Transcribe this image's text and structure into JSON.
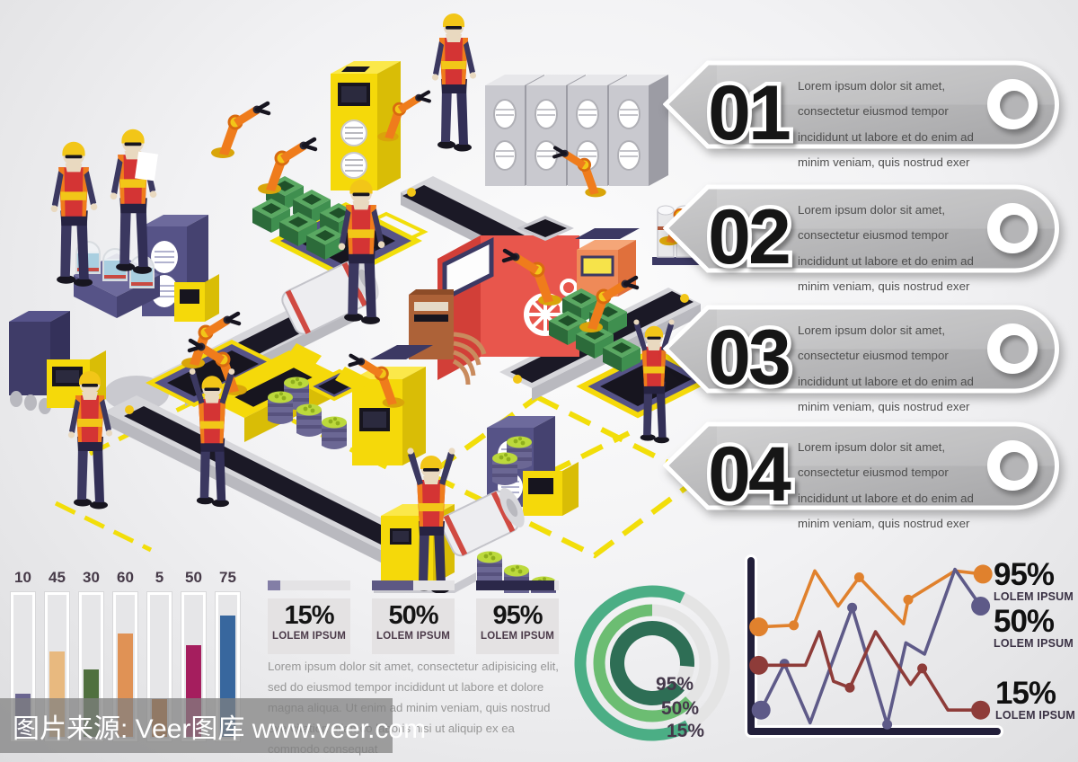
{
  "steps": [
    {
      "number": "01",
      "text": "Lorem ipsum dolor sit amet, consectetur eiusmod tempor incididunt ut labore et do enim ad minim veniam, quis nostrud exer"
    },
    {
      "number": "02",
      "text": "Lorem ipsum dolor sit amet, consectetur eiusmod tempor incididunt ut labore et do enim ad minim veniam, quis nostrud exer"
    },
    {
      "number": "03",
      "text": "Lorem ipsum dolor sit amet, consectetur eiusmod tempor incididunt ut labore et do enim ad minim veniam, quis nostrud exer"
    },
    {
      "number": "04",
      "text": "Lorem ipsum dolor sit amet, consectetur eiusmod tempor incididunt ut labore et do enim ad minim veniam, quis nostrud exer"
    }
  ],
  "stats": {
    "cards": [
      {
        "value": "15%",
        "label": "LOLEM IPSUM",
        "progress": 15,
        "bar_color": "#837ea6"
      },
      {
        "value": "50%",
        "label": "LOLEM IPSUM",
        "progress": 50,
        "bar_color": "#5d5884"
      },
      {
        "value": "95%",
        "label": "LOLEM IPSUM",
        "progress": 95,
        "bar_color": "#2b2849"
      }
    ],
    "paragraph": "Lorem ipsum dolor sit amet, consectetur adipisicing elit, sed do eiusmod tempor incididunt ut labore et dolore magna aliqua. Ut enim ad minim veniam, quis nostrud exercitation ullamco laboris nisi ut aliquip ex ea commodo consequat"
  },
  "chart_data": [
    {
      "type": "bar",
      "title": "",
      "categories": [
        "10",
        "45",
        "30",
        "60",
        "5",
        "50",
        "75"
      ],
      "values": [
        10,
        45,
        30,
        60,
        5,
        50,
        75
      ],
      "colors": [
        "#6a6590",
        "#e8b97f",
        "#50703f",
        "#e09255",
        "#bf6a1f",
        "#a51e5e",
        "#38679e"
      ],
      "track_color": "#e6e6e8",
      "ylim": [
        0,
        100
      ],
      "labels_position": "top"
    },
    {
      "type": "donut",
      "track_color": "#e4e4e4",
      "rings": [
        {
          "label": "95%",
          "value": 95,
          "color": "#2e6e55",
          "r": 39,
          "width": 16,
          "start_deg": 130,
          "sweep_deg": 325
        },
        {
          "label": "50%",
          "value": 50,
          "color": "#6cbd72",
          "r": 59,
          "width": 13,
          "start_deg": 135,
          "sweep_deg": 225
        },
        {
          "label": "15%",
          "value": 15,
          "color": "#4bae85",
          "r": 80,
          "width": 13,
          "start_deg": 150,
          "sweep_deg": 235
        }
      ]
    },
    {
      "type": "line",
      "axis_color": "#221f3a",
      "xlim": [
        0,
        100
      ],
      "ylim": [
        0,
        100
      ],
      "legend_position": "right",
      "series": [
        {
          "value_label": "95%",
          "caption": "LOLEM IPSUM",
          "color": "#e0812d",
          "points": [
            [
              1,
              62
            ],
            [
              16,
              63
            ],
            [
              25,
              97
            ],
            [
              35,
              75
            ],
            [
              44,
              93
            ],
            [
              63,
              64
            ],
            [
              65,
              79
            ],
            [
              85,
              97
            ],
            [
              97,
              95
            ]
          ],
          "big_dots": [
            0,
            8
          ],
          "small_dots": [
            1,
            4,
            6
          ]
        },
        {
          "value_label": "50%",
          "caption": "LOLEM IPSUM",
          "color": "#5e5a88",
          "points": [
            [
              2,
              10
            ],
            [
              12,
              39
            ],
            [
              23,
              2
            ],
            [
              41,
              74
            ],
            [
              56,
              1
            ],
            [
              64,
              52
            ],
            [
              72,
              45
            ],
            [
              85,
              98
            ],
            [
              96,
              75
            ]
          ],
          "big_dots": [
            0,
            8
          ],
          "small_dots": [
            1,
            3,
            4
          ]
        },
        {
          "value_label": "15%",
          "caption": "LOLEM IPSUM",
          "color": "#8e3c39",
          "points": [
            [
              1,
              38
            ],
            [
              21,
              38
            ],
            [
              27,
              59
            ],
            [
              33,
              28
            ],
            [
              40,
              24
            ],
            [
              51,
              59
            ],
            [
              66,
              26
            ],
            [
              71,
              36
            ],
            [
              82,
              10
            ],
            [
              96,
              10
            ]
          ],
          "big_dots": [
            0,
            9
          ],
          "small_dots": [
            4,
            7
          ]
        }
      ]
    }
  ],
  "watermark": {
    "text": "图片来源: Veer图库 www.veer.com"
  },
  "illustration": {
    "subject": "isometric factory floor with workers, conveyor belts, robot arms, machines, crates, barrels and tanks",
    "palette": {
      "yellow": "#f5d90a",
      "orange": "#ef7c1c",
      "red": "#e8564c",
      "navy": "#565387",
      "belt": "#1b1926",
      "gray": "#c9c9cf",
      "green": "#3f8f4f",
      "lime": "#bcd93c",
      "vest": "#d43434"
    }
  }
}
